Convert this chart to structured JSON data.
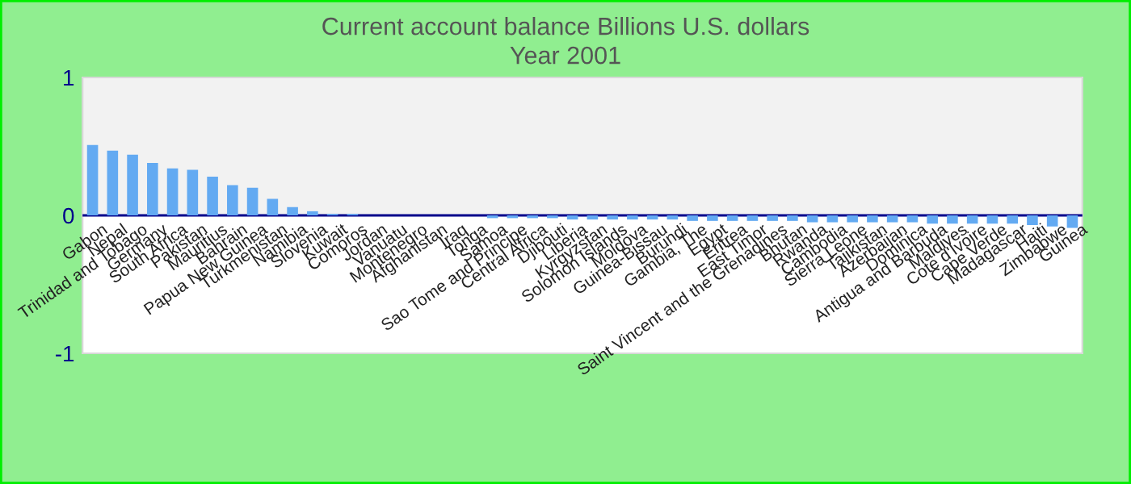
{
  "chart_data": {
    "type": "bar",
    "title": "Current account balance Billions U.S. dollars",
    "subtitle": "Year 2001",
    "categories": [
      "Gabon",
      "Nepal",
      "Trinidad and Tobago",
      "Germany",
      "South Africa",
      "Pakistan",
      "Mauritius",
      "Bahrain",
      "Papua New Guinea",
      "Turkmenistan",
      "Namibia",
      "Slovenia",
      "Kuwait",
      "Comoros",
      "Jordan",
      "Vanuatu",
      "Montenegro",
      "Afghanistan",
      "Iraq",
      "Tonga",
      "Samoa",
      "Sao Tome and Principe",
      "Central Africa",
      "Djibouti",
      "Liberia",
      "Kyrgyzstan",
      "Solomon Islands",
      "Moldova",
      "Guinea-Bissau",
      "Burundi",
      "Gambia, The",
      "Egypt",
      "Eritrea",
      "East Timor",
      "Saint Vincent and the Grenadines",
      "Bhutan",
      "Rwanda",
      "Cambodia",
      "Sierra Leone",
      "Tajikistan",
      "Azerbaijan",
      "Dominica",
      "Antigua and Barbuda",
      "Maldives",
      "Cote d'Ivoire",
      "Cape Verde",
      "Madagascar",
      "Haiti",
      "Zimbabwe",
      "Guinea"
    ],
    "values": [
      0.51,
      0.47,
      0.44,
      0.38,
      0.34,
      0.33,
      0.28,
      0.22,
      0.2,
      0.12,
      0.06,
      0.03,
      0.01,
      0.01,
      0,
      0,
      0,
      0,
      0,
      0,
      -0.02,
      -0.02,
      -0.02,
      -0.02,
      -0.03,
      -0.03,
      -0.03,
      -0.03,
      -0.03,
      -0.03,
      -0.04,
      -0.04,
      -0.04,
      -0.04,
      -0.04,
      -0.04,
      -0.05,
      -0.05,
      -0.05,
      -0.05,
      -0.05,
      -0.05,
      -0.06,
      -0.06,
      -0.06,
      -0.06,
      -0.06,
      -0.07,
      -0.08,
      -0.09
    ],
    "color": "#63aaf2",
    "ylim": [
      -1,
      1
    ],
    "yticks": [
      -1,
      0,
      1
    ],
    "bands": [
      {
        "axis": "y",
        "from": 0,
        "to": 1,
        "color": "#f2f2f2"
      }
    ],
    "ref_lines": [
      {
        "axis": "y",
        "value": 0,
        "color": "#00008b"
      }
    ]
  }
}
